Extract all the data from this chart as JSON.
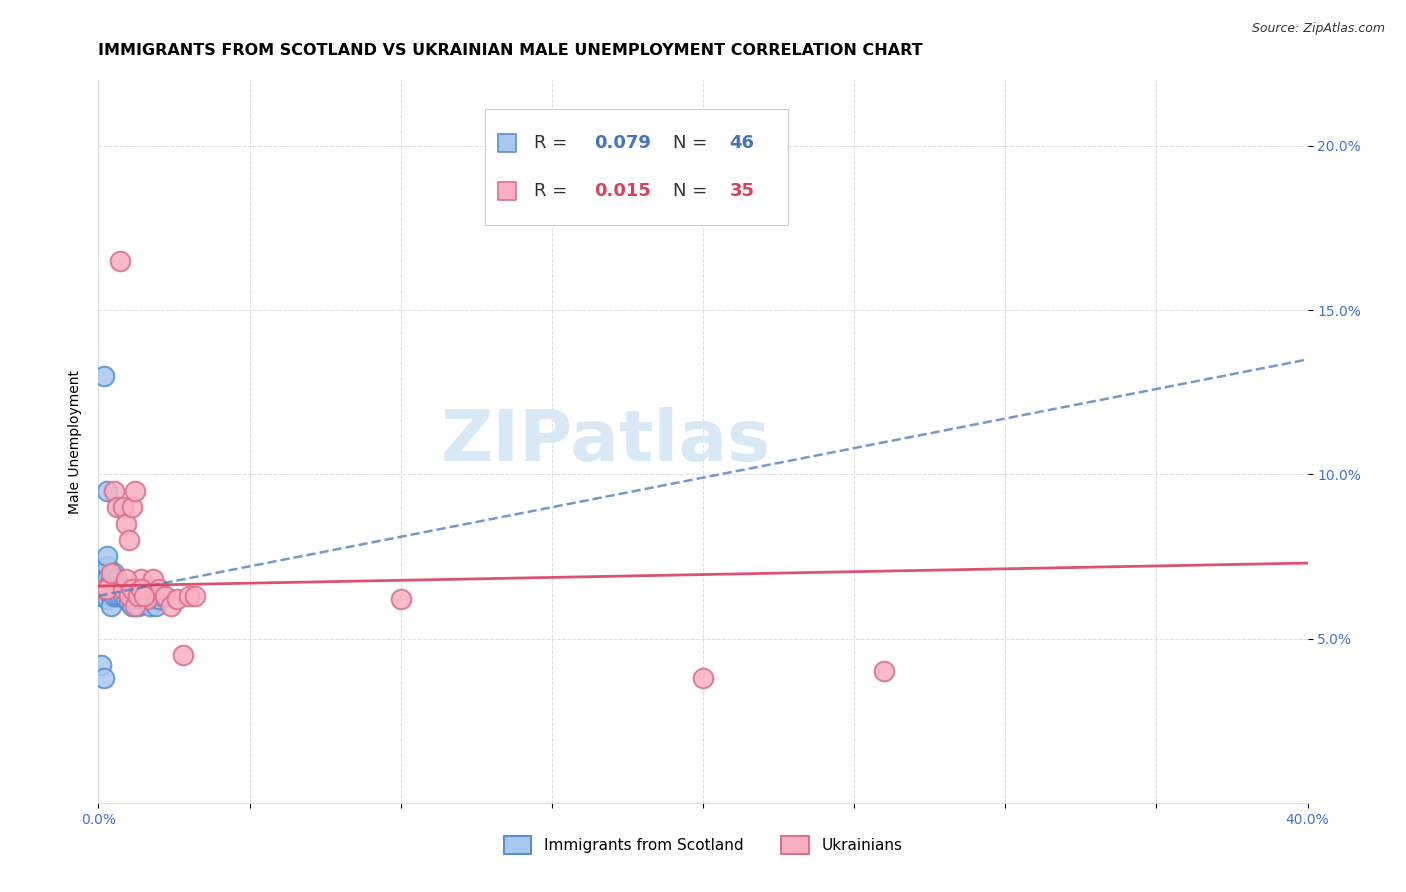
{
  "title": "IMMIGRANTS FROM SCOTLAND VS UKRAINIAN MALE UNEMPLOYMENT CORRELATION CHART",
  "source": "Source: ZipAtlas.com",
  "ylabel": "Male Unemployment",
  "xlim": [
    0.0,
    0.4
  ],
  "ylim": [
    0.0,
    0.22
  ],
  "xtick_positions": [
    0.0,
    0.05,
    0.1,
    0.15,
    0.2,
    0.25,
    0.3,
    0.35,
    0.4
  ],
  "xticklabels": [
    "0.0%",
    "",
    "",
    "",
    "",
    "",
    "",
    "",
    "40.0%"
  ],
  "ytick_positions": [
    0.05,
    0.1,
    0.15,
    0.2
  ],
  "yticklabels": [
    "5.0%",
    "10.0%",
    "15.0%",
    "20.0%"
  ],
  "legend_r1": "0.079",
  "legend_n1": "46",
  "legend_r2": "0.015",
  "legend_n2": "35",
  "scotland_x": [
    0.001,
    0.001,
    0.001,
    0.002,
    0.002,
    0.002,
    0.002,
    0.002,
    0.003,
    0.003,
    0.003,
    0.003,
    0.003,
    0.003,
    0.004,
    0.004,
    0.004,
    0.004,
    0.005,
    0.005,
    0.005,
    0.006,
    0.006,
    0.006,
    0.007,
    0.007,
    0.008,
    0.008,
    0.009,
    0.01,
    0.01,
    0.011,
    0.012,
    0.013,
    0.014,
    0.015,
    0.016,
    0.017,
    0.018,
    0.019,
    0.02,
    0.021,
    0.002,
    0.003,
    0.001,
    0.002
  ],
  "scotland_y": [
    0.068,
    0.065,
    0.063,
    0.068,
    0.07,
    0.066,
    0.065,
    0.063,
    0.072,
    0.075,
    0.068,
    0.065,
    0.063,
    0.062,
    0.068,
    0.065,
    0.063,
    0.06,
    0.07,
    0.066,
    0.063,
    0.068,
    0.065,
    0.063,
    0.065,
    0.063,
    0.065,
    0.063,
    0.062,
    0.063,
    0.061,
    0.06,
    0.062,
    0.06,
    0.062,
    0.062,
    0.063,
    0.06,
    0.062,
    0.06,
    0.062,
    0.063,
    0.13,
    0.095,
    0.042,
    0.038
  ],
  "ukraine_x": [
    0.002,
    0.003,
    0.004,
    0.005,
    0.006,
    0.007,
    0.008,
    0.009,
    0.01,
    0.011,
    0.012,
    0.013,
    0.014,
    0.015,
    0.016,
    0.017,
    0.018,
    0.02,
    0.022,
    0.024,
    0.026,
    0.028,
    0.03,
    0.032,
    0.008,
    0.009,
    0.01,
    0.011,
    0.012,
    0.013,
    0.014,
    0.015,
    0.1,
    0.2,
    0.26
  ],
  "ukraine_y": [
    0.065,
    0.065,
    0.07,
    0.095,
    0.09,
    0.165,
    0.09,
    0.085,
    0.08,
    0.09,
    0.095,
    0.065,
    0.068,
    0.063,
    0.062,
    0.065,
    0.068,
    0.065,
    0.063,
    0.06,
    0.062,
    0.045,
    0.063,
    0.063,
    0.065,
    0.068,
    0.063,
    0.065,
    0.06,
    0.063,
    0.065,
    0.063,
    0.062,
    0.038,
    0.04
  ],
  "scotland_line_x": [
    0.0,
    0.4
  ],
  "scotland_line_y": [
    0.063,
    0.135
  ],
  "ukraine_line_x": [
    0.0,
    0.4
  ],
  "ukraine_line_y": [
    0.066,
    0.073
  ],
  "color_scotland_face": "#A8C8F0",
  "color_scotland_edge": "#5A8FD0",
  "color_ukraine_face": "#F8B0C0",
  "color_ukraine_edge": "#D87090",
  "color_scotland_line": "#5080C0",
  "color_ukraine_line": "#D84060",
  "background_color": "#ffffff",
  "watermark_text": "ZIPatlas",
  "watermark_color": "#D8E8F5",
  "grid_color": "#DDDDDD",
  "title_color": "#000000",
  "tick_color": "#4472C4",
  "ylabel_color": "#000000",
  "title_fontsize": 11.5,
  "label_fontsize": 10,
  "tick_fontsize": 10,
  "legend_fontsize": 13,
  "scatter_size": 200,
  "scatter_alpha": 0.85,
  "scatter_lw": 1.5
}
